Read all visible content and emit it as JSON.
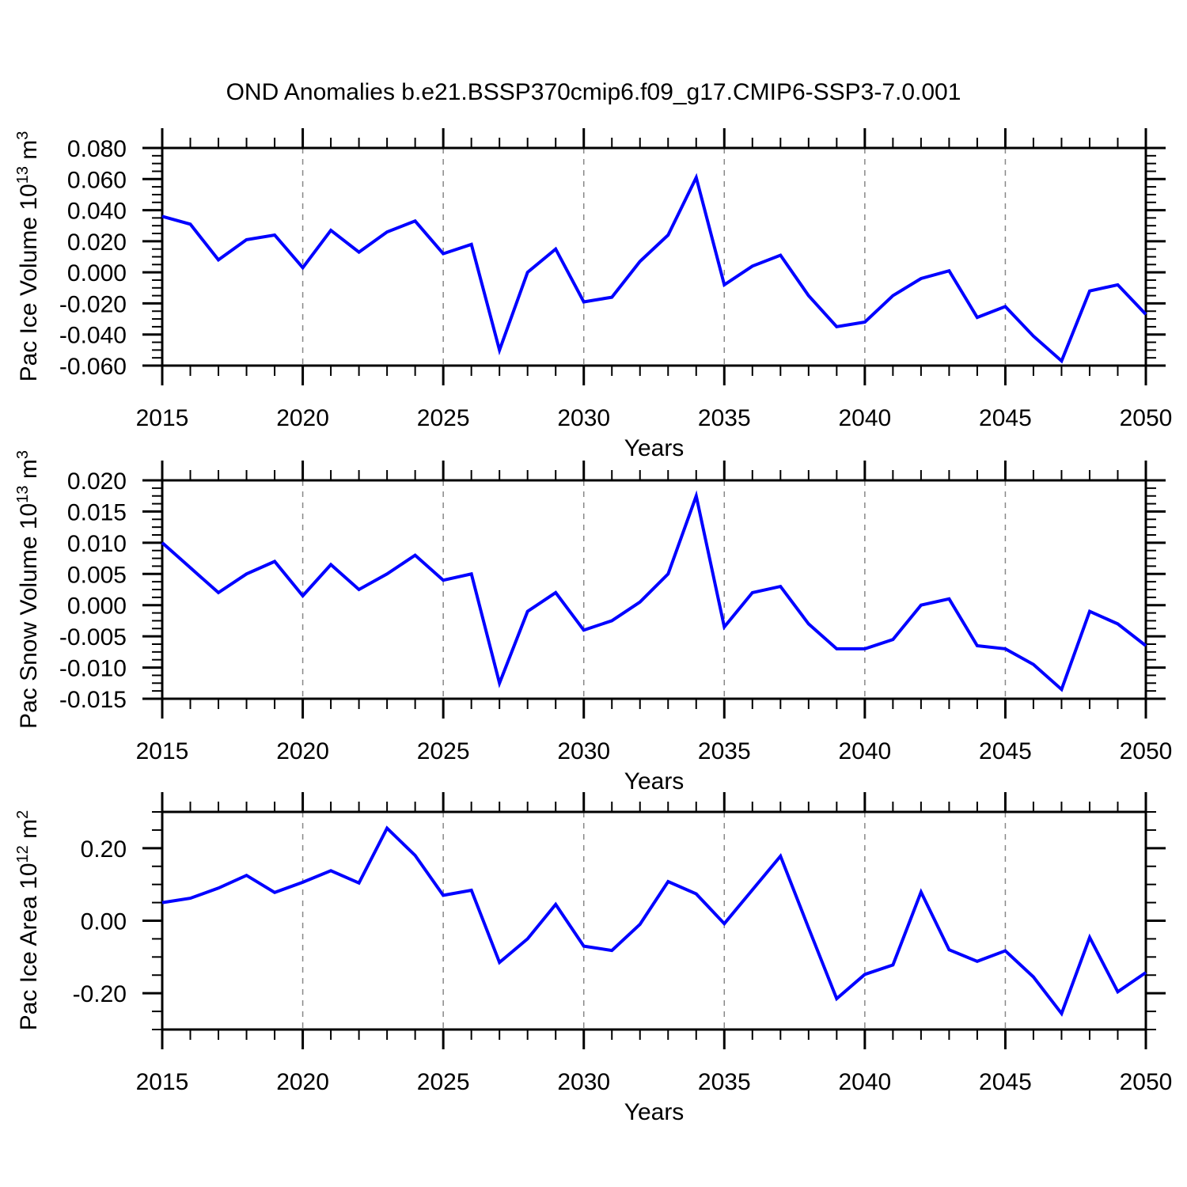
{
  "title": "OND Anomalies b.e21.BSSP370cmip6.f09_g17.CMIP6-SSP3-7.0.001",
  "chart_data": [
    {
      "name": "pac-ice-volume",
      "type": "line",
      "line_color": "#0000ff",
      "xlabel": "Years",
      "ylabel": {
        "base": "Pac Ice Volume 10",
        "exp": "13",
        "unit": " m",
        "unit_exp": "3"
      },
      "xlim": [
        2015,
        2050
      ],
      "ylim": [
        -0.06,
        0.08
      ],
      "xticks": [
        2015,
        2020,
        2025,
        2030,
        2035,
        2040,
        2045,
        2050
      ],
      "xtick_labels": [
        "2015",
        "2020",
        "2025",
        "2030",
        "2035",
        "2040",
        "2045",
        "2050"
      ],
      "xminor_step": 1,
      "grid_xticks": [
        2020,
        2025,
        2030,
        2035,
        2040,
        2045
      ],
      "yticks": [
        0.08,
        0.06,
        0.04,
        0.02,
        0.0,
        -0.02,
        -0.04,
        -0.06
      ],
      "ytick_labels": [
        "0.080",
        "0.060",
        "0.040",
        "0.020",
        "0.000",
        "-0.020",
        "-0.040",
        "-0.060"
      ],
      "yminor_step": 0.005,
      "x": [
        2015,
        2016,
        2017,
        2018,
        2019,
        2020,
        2021,
        2022,
        2023,
        2024,
        2025,
        2026,
        2027,
        2028,
        2029,
        2030,
        2031,
        2032,
        2033,
        2034,
        2035,
        2036,
        2037,
        2038,
        2039,
        2040,
        2041,
        2042,
        2043,
        2044,
        2045,
        2046,
        2047,
        2048,
        2049,
        2050
      ],
      "values": [
        0.036,
        0.031,
        0.008,
        0.021,
        0.024,
        0.003,
        0.027,
        0.013,
        0.026,
        0.033,
        0.012,
        0.018,
        -0.05,
        0.0,
        0.015,
        -0.019,
        -0.016,
        0.007,
        0.024,
        0.061,
        -0.008,
        0.004,
        0.011,
        -0.015,
        -0.035,
        -0.032,
        -0.015,
        -0.004,
        0.001,
        -0.029,
        -0.022,
        -0.041,
        -0.057,
        -0.012,
        -0.008,
        -0.027
      ]
    },
    {
      "name": "pac-snow-volume",
      "type": "line",
      "line_color": "#0000ff",
      "xlabel": "Years",
      "ylabel": {
        "base": "Pac Snow Volume 10",
        "exp": "13",
        "unit": " m",
        "unit_exp": "3"
      },
      "xlim": [
        2015,
        2050
      ],
      "ylim": [
        -0.015,
        0.02
      ],
      "xticks": [
        2015,
        2020,
        2025,
        2030,
        2035,
        2040,
        2045,
        2050
      ],
      "xtick_labels": [
        "2015",
        "2020",
        "2025",
        "2030",
        "2035",
        "2040",
        "2045",
        "2050"
      ],
      "xminor_step": 1,
      "grid_xticks": [
        2020,
        2025,
        2030,
        2035,
        2040,
        2045
      ],
      "yticks": [
        0.02,
        0.015,
        0.01,
        0.005,
        0.0,
        -0.005,
        -0.01,
        -0.015
      ],
      "ytick_labels": [
        "0.020",
        "0.015",
        "0.010",
        "0.005",
        "0.000",
        "-0.005",
        "-0.010",
        "-0.015"
      ],
      "yminor_step": 0.00125,
      "x": [
        2015,
        2016,
        2017,
        2018,
        2019,
        2020,
        2021,
        2022,
        2023,
        2024,
        2025,
        2026,
        2027,
        2028,
        2029,
        2030,
        2031,
        2032,
        2033,
        2034,
        2035,
        2036,
        2037,
        2038,
        2039,
        2040,
        2041,
        2042,
        2043,
        2044,
        2045,
        2046,
        2047,
        2048,
        2049,
        2050
      ],
      "values": [
        0.01,
        0.006,
        0.002,
        0.005,
        0.007,
        0.0015,
        0.0065,
        0.0025,
        0.005,
        0.008,
        0.004,
        0.005,
        -0.0125,
        -0.001,
        0.002,
        -0.004,
        -0.0025,
        0.0005,
        0.005,
        0.0175,
        -0.0035,
        0.002,
        0.003,
        -0.003,
        -0.007,
        -0.007,
        -0.0055,
        0.0,
        0.001,
        -0.0065,
        -0.007,
        -0.0095,
        -0.0135,
        -0.001,
        -0.003,
        -0.0065
      ]
    },
    {
      "name": "pac-ice-area",
      "type": "line",
      "line_color": "#0000ff",
      "xlabel": "Years",
      "ylabel": {
        "base": "Pac Ice Area 10",
        "exp": "12",
        "unit": " m",
        "unit_exp": "2"
      },
      "xlim": [
        2015,
        2050
      ],
      "ylim": [
        -0.3,
        0.3
      ],
      "xticks": [
        2015,
        2020,
        2025,
        2030,
        2035,
        2040,
        2045,
        2050
      ],
      "xtick_labels": [
        "2015",
        "2020",
        "2025",
        "2030",
        "2035",
        "2040",
        "2045",
        "2050"
      ],
      "xminor_step": 1,
      "grid_xticks": [
        2020,
        2025,
        2030,
        2035,
        2040,
        2045
      ],
      "yticks": [
        0.2,
        0.0,
        -0.2
      ],
      "ytick_labels": [
        "0.20",
        "0.00",
        "-0.20"
      ],
      "yminor_step": 0.05,
      "x": [
        2015,
        2016,
        2017,
        2018,
        2019,
        2020,
        2021,
        2022,
        2023,
        2024,
        2025,
        2026,
        2027,
        2028,
        2029,
        2030,
        2031,
        2032,
        2033,
        2034,
        2035,
        2036,
        2037,
        2038,
        2039,
        2040,
        2041,
        2042,
        2043,
        2044,
        2045,
        2046,
        2047,
        2048,
        2049,
        2050
      ],
      "values": [
        0.05,
        0.062,
        0.09,
        0.125,
        0.078,
        0.106,
        0.138,
        0.104,
        0.255,
        0.18,
        0.07,
        0.084,
        -0.115,
        -0.05,
        0.045,
        -0.07,
        -0.082,
        -0.01,
        0.108,
        0.074,
        -0.008,
        0.085,
        0.178,
        -0.02,
        -0.215,
        -0.148,
        -0.122,
        0.079,
        -0.08,
        -0.112,
        -0.083,
        -0.155,
        -0.256,
        -0.046,
        -0.196,
        -0.143
      ]
    }
  ],
  "style": {
    "grid_color": "#888888",
    "axis_color": "#000000"
  }
}
